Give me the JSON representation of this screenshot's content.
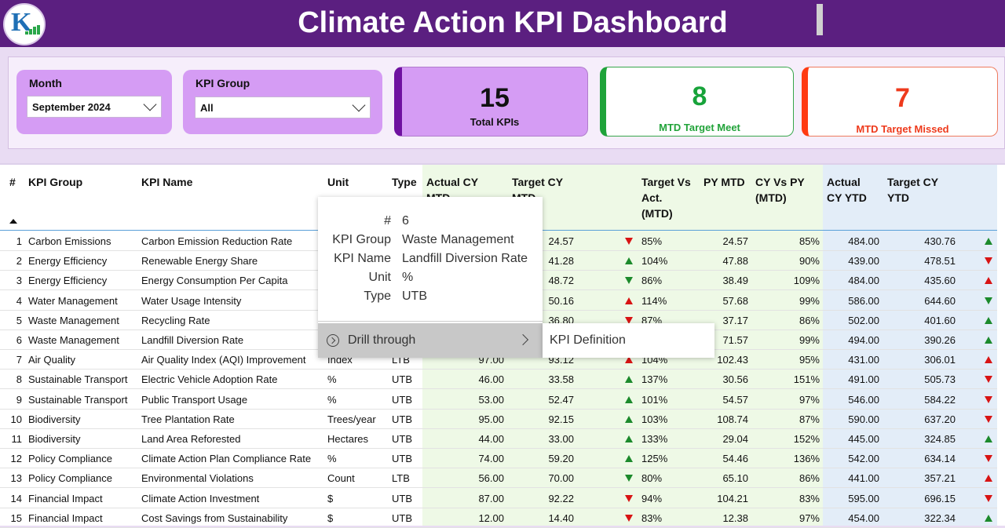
{
  "header": {
    "title": "Climate Action KPI Dashboard",
    "logo_letters": "K"
  },
  "filters": {
    "month": {
      "label": "Month",
      "value": "September 2024"
    },
    "kpi_group": {
      "label": "KPI Group",
      "value": "All"
    }
  },
  "cards": {
    "total": {
      "value": "15",
      "label": "Total KPIs"
    },
    "meet": {
      "value": "8",
      "label": "MTD Target Meet",
      "color": "#17a33a"
    },
    "missed": {
      "value": "7",
      "label": "MTD Target Missed",
      "color": "#ee3a1c"
    }
  },
  "table": {
    "columns": [
      "#",
      "KPI Group",
      "KPI Name",
      "Unit",
      "Type",
      "Actual CY MTD",
      "Target CY MTD",
      "Target Vs Act. (MTD)",
      "PY MTD",
      "CY Vs PY (MTD)",
      "Actual CY YTD",
      "Target CY YTD"
    ],
    "column_header_lines": {
      "actual_mtd": [
        "Actual CY",
        "MTD"
      ],
      "target_mtd": [
        "Target CY",
        "MTD"
      ],
      "tva": [
        "Target Vs",
        "Act.",
        "(MTD)"
      ],
      "cvp": [
        "CY Vs PY",
        "(MTD)"
      ],
      "actual_ytd": [
        "Actual",
        "CY YTD"
      ],
      "target_ytd": [
        "Target CY",
        "YTD"
      ]
    },
    "rows": [
      {
        "n": "1",
        "group": "Carbon Emissions",
        "name": "Carbon Emission Reduction Rate",
        "unit": "",
        "type": "",
        "act_mtd": "",
        "tgt_mtd": "24.57",
        "mtd_icon": "down-red",
        "tva": "85%",
        "py": "24.57",
        "cvp": "85%",
        "act_ytd": "484.00",
        "tgt_ytd": "430.76",
        "ytd_icon": "up-green"
      },
      {
        "n": "2",
        "group": "Energy Efficiency",
        "name": "Renewable Energy Share",
        "unit": "",
        "type": "",
        "act_mtd": "",
        "tgt_mtd": "41.28",
        "mtd_icon": "up-green",
        "tva": "104%",
        "py": "47.88",
        "cvp": "90%",
        "act_ytd": "439.00",
        "tgt_ytd": "478.51",
        "ytd_icon": "down-red"
      },
      {
        "n": "3",
        "group": "Energy Efficiency",
        "name": "Energy Consumption Per Capita",
        "unit": "",
        "type": "",
        "act_mtd": "",
        "tgt_mtd": "48.72",
        "mtd_icon": "down-green",
        "tva": "86%",
        "py": "38.49",
        "cvp": "109%",
        "act_ytd": "484.00",
        "tgt_ytd": "435.60",
        "ytd_icon": "up-red"
      },
      {
        "n": "4",
        "group": "Water Management",
        "name": "Water Usage Intensity",
        "unit": "",
        "type": "",
        "act_mtd": "",
        "tgt_mtd": "50.16",
        "mtd_icon": "up-red",
        "tva": "114%",
        "py": "57.68",
        "cvp": "99%",
        "act_ytd": "586.00",
        "tgt_ytd": "644.60",
        "ytd_icon": "down-green"
      },
      {
        "n": "5",
        "group": "Waste Management",
        "name": "Recycling Rate",
        "unit": "",
        "type": "",
        "act_mtd": "",
        "tgt_mtd": "36.80",
        "mtd_icon": "down-red",
        "tva": "87%",
        "py": "37.17",
        "cvp": "86%",
        "act_ytd": "502.00",
        "tgt_ytd": "401.60",
        "ytd_icon": "up-green"
      },
      {
        "n": "6",
        "group": "Waste Management",
        "name": "Landfill Diversion Rate",
        "unit": "",
        "type": "",
        "act_mtd": "",
        "tgt_mtd": "",
        "mtd_icon": "",
        "tva": "",
        "py": "71.57",
        "cvp": "99%",
        "act_ytd": "494.00",
        "tgt_ytd": "390.26",
        "ytd_icon": "up-green"
      },
      {
        "n": "7",
        "group": "Air Quality",
        "name": "Air Quality Index (AQI) Improvement",
        "unit": "Index",
        "type": "LTB",
        "act_mtd": "97.00",
        "tgt_mtd": "93.12",
        "mtd_icon": "up-red",
        "tva": "104%",
        "py": "102.43",
        "cvp": "95%",
        "act_ytd": "431.00",
        "tgt_ytd": "306.01",
        "ytd_icon": "up-red"
      },
      {
        "n": "8",
        "group": "Sustainable Transport",
        "name": "Electric Vehicle Adoption Rate",
        "unit": "%",
        "type": "UTB",
        "act_mtd": "46.00",
        "tgt_mtd": "33.58",
        "mtd_icon": "up-green",
        "tva": "137%",
        "py": "30.56",
        "cvp": "151%",
        "act_ytd": "491.00",
        "tgt_ytd": "505.73",
        "ytd_icon": "down-red"
      },
      {
        "n": "9",
        "group": "Sustainable Transport",
        "name": "Public Transport Usage",
        "unit": "%",
        "type": "UTB",
        "act_mtd": "53.00",
        "tgt_mtd": "52.47",
        "mtd_icon": "up-green",
        "tva": "101%",
        "py": "54.57",
        "cvp": "97%",
        "act_ytd": "546.00",
        "tgt_ytd": "584.22",
        "ytd_icon": "down-red"
      },
      {
        "n": "10",
        "group": "Biodiversity",
        "name": "Tree Plantation Rate",
        "unit": "Trees/year",
        "type": "UTB",
        "act_mtd": "95.00",
        "tgt_mtd": "92.15",
        "mtd_icon": "up-green",
        "tva": "103%",
        "py": "108.74",
        "cvp": "87%",
        "act_ytd": "590.00",
        "tgt_ytd": "637.20",
        "ytd_icon": "down-red"
      },
      {
        "n": "11",
        "group": "Biodiversity",
        "name": "Land Area Reforested",
        "unit": "Hectares",
        "type": "UTB",
        "act_mtd": "44.00",
        "tgt_mtd": "33.00",
        "mtd_icon": "up-green",
        "tva": "133%",
        "py": "29.04",
        "cvp": "152%",
        "act_ytd": "445.00",
        "tgt_ytd": "324.85",
        "ytd_icon": "up-green"
      },
      {
        "n": "12",
        "group": "Policy Compliance",
        "name": "Climate Action Plan Compliance Rate",
        "unit": "%",
        "type": "UTB",
        "act_mtd": "74.00",
        "tgt_mtd": "59.20",
        "mtd_icon": "up-green",
        "tva": "125%",
        "py": "54.46",
        "cvp": "136%",
        "act_ytd": "542.00",
        "tgt_ytd": "634.14",
        "ytd_icon": "down-red"
      },
      {
        "n": "13",
        "group": "Policy Compliance",
        "name": "Environmental Violations",
        "unit": "Count",
        "type": "LTB",
        "act_mtd": "56.00",
        "tgt_mtd": "70.00",
        "mtd_icon": "down-green",
        "tva": "80%",
        "py": "65.10",
        "cvp": "86%",
        "act_ytd": "441.00",
        "tgt_ytd": "357.21",
        "ytd_icon": "up-red"
      },
      {
        "n": "14",
        "group": "Financial Impact",
        "name": "Climate Action Investment",
        "unit": "$",
        "type": "UTB",
        "act_mtd": "87.00",
        "tgt_mtd": "92.22",
        "mtd_icon": "down-red",
        "tva": "94%",
        "py": "104.21",
        "cvp": "83%",
        "act_ytd": "595.00",
        "tgt_ytd": "696.15",
        "ytd_icon": "down-red"
      },
      {
        "n": "15",
        "group": "Financial Impact",
        "name": "Cost Savings from Sustainability",
        "unit": "$",
        "type": "UTB",
        "act_mtd": "12.00",
        "tgt_mtd": "14.40",
        "mtd_icon": "down-red",
        "tva": "83%",
        "py": "12.38",
        "cvp": "97%",
        "act_ytd": "454.00",
        "tgt_ytd": "322.34",
        "ytd_icon": "up-green"
      }
    ]
  },
  "tooltip": {
    "fields": [
      {
        "key": "#",
        "value": "6"
      },
      {
        "key": "KPI Group",
        "value": "Waste Management"
      },
      {
        "key": "KPI Name",
        "value": "Landfill Diversion Rate"
      },
      {
        "key": "Unit",
        "value": "%"
      },
      {
        "key": "Type",
        "value": "UTB"
      }
    ],
    "drill_label": "Drill through",
    "submenu_item": "KPI Definition"
  },
  "colors": {
    "brand": "#5b1f80",
    "accent": "#d59cf4",
    "good": "#1c8a2c",
    "bad": "#d81414"
  }
}
